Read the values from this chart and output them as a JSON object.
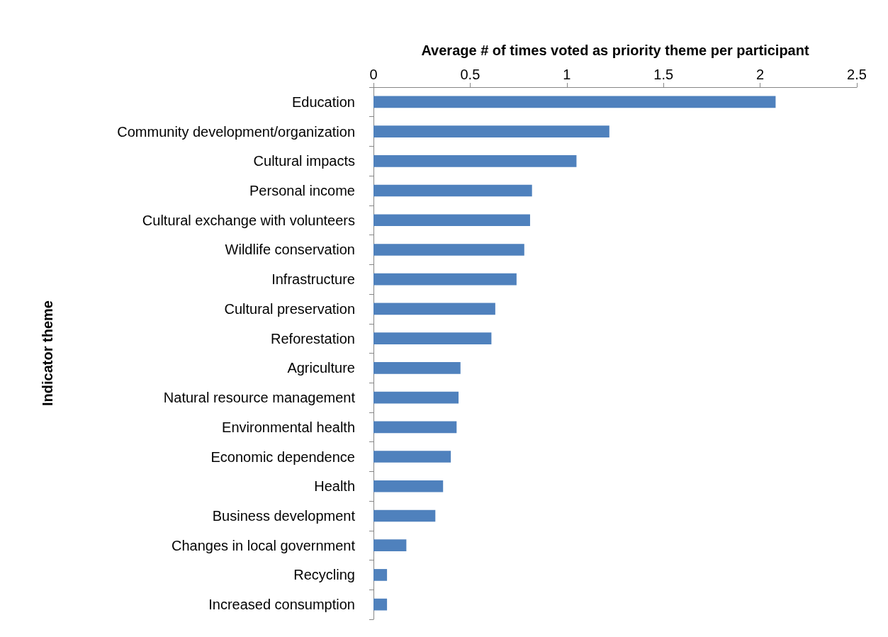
{
  "chart_data": {
    "type": "bar",
    "orientation": "horizontal",
    "xlabel": "Average # of times voted as priority theme per participant",
    "ylabel": "Indicator theme",
    "categories": [
      "Education",
      "Community development/organization",
      "Cultural impacts",
      "Personal income",
      "Cultural exchange with volunteers",
      "Wildlife conservation",
      "Infrastructure",
      "Cultural preservation",
      "Reforestation",
      "Agriculture",
      "Natural resource management",
      "Environmental health",
      "Economic dependence",
      "Health",
      "Business development",
      "Changes in local government",
      "Recycling",
      "Increased consumption"
    ],
    "values": [
      2.08,
      1.22,
      1.05,
      0.82,
      0.81,
      0.78,
      0.74,
      0.63,
      0.61,
      0.45,
      0.44,
      0.43,
      0.4,
      0.36,
      0.32,
      0.17,
      0.07,
      0.07
    ],
    "color": "#4f81bd",
    "xlim": [
      0,
      2.5
    ],
    "xticks": [
      0,
      0.5,
      1,
      1.5,
      2,
      2.5
    ],
    "grid": false
  }
}
